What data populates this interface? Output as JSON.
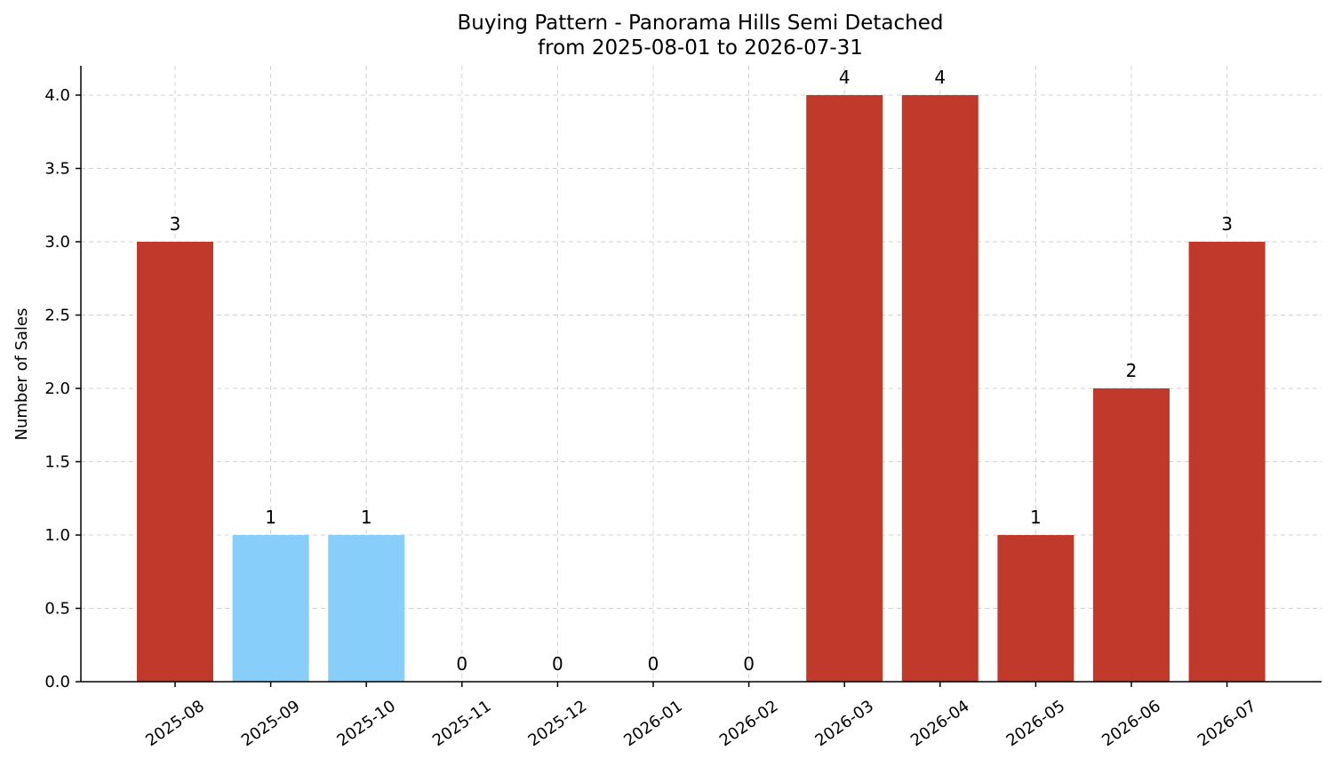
{
  "chart_data": {
    "type": "bar",
    "title": "Buying Pattern - Panorama Hills Semi Detached",
    "subtitle": "from 2025-08-01 to 2026-07-31",
    "xlabel": "",
    "ylabel": "Number of Sales",
    "ylim": [
      0,
      4.2
    ],
    "yticks": [
      "0.0",
      "0.5",
      "1.0",
      "1.5",
      "2.0",
      "2.5",
      "3.0",
      "3.5",
      "4.0"
    ],
    "grid": true,
    "categories": [
      "2025-08",
      "2025-09",
      "2025-10",
      "2025-11",
      "2025-12",
      "2026-01",
      "2026-02",
      "2026-03",
      "2026-04",
      "2026-05",
      "2026-06",
      "2026-07"
    ],
    "values": [
      3,
      1,
      1,
      0,
      0,
      0,
      0,
      4,
      4,
      1,
      2,
      3
    ],
    "bar_colors": [
      "#c0392b",
      "#87cefa",
      "#87cefa",
      "#c0392b",
      "#c0392b",
      "#c0392b",
      "#c0392b",
      "#c0392b",
      "#c0392b",
      "#c0392b",
      "#c0392b",
      "#c0392b"
    ]
  }
}
